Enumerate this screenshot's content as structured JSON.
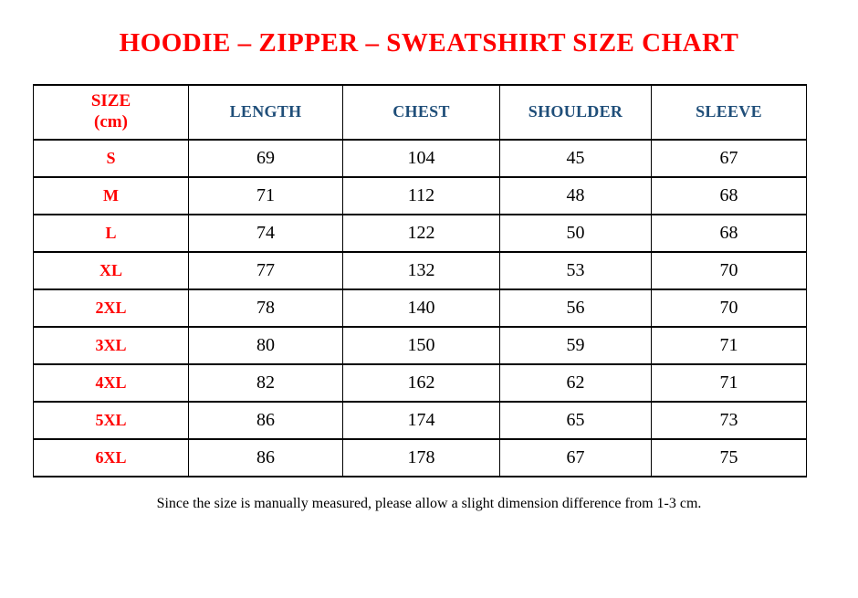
{
  "stray_mark": ".",
  "title": "HOODIE – ZIPPER – SWEATSHIRT SIZE CHART",
  "table": {
    "header": {
      "size_label_line1": "SIZE",
      "size_label_line2": "(cm)",
      "measurement_columns": [
        "LENGTH",
        "CHEST",
        "SHOULDER",
        "SLEEVE"
      ]
    },
    "rows": [
      {
        "size": "S",
        "values": [
          "69",
          "104",
          "45",
          "67"
        ]
      },
      {
        "size": "M",
        "values": [
          "71",
          "112",
          "48",
          "68"
        ]
      },
      {
        "size": "L",
        "values": [
          "74",
          "122",
          "50",
          "68"
        ]
      },
      {
        "size": "XL",
        "values": [
          "77",
          "132",
          "53",
          "70"
        ]
      },
      {
        "size": "2XL",
        "values": [
          "78",
          "140",
          "56",
          "70"
        ]
      },
      {
        "size": "3XL",
        "values": [
          "80",
          "150",
          "59",
          "71"
        ]
      },
      {
        "size": "4XL",
        "values": [
          "82",
          "162",
          "62",
          "71"
        ]
      },
      {
        "size": "5XL",
        "values": [
          "86",
          "174",
          "65",
          "73"
        ]
      },
      {
        "size": "6XL",
        "values": [
          "86",
          "178",
          "67",
          "75"
        ]
      }
    ]
  },
  "footer_note": "Since the size is manually measured, please allow a slight dimension difference from 1-3 cm.",
  "colors": {
    "title_red": "#ff0000",
    "label_red": "#ff0000",
    "header_blue": "#1f4e79",
    "text_black": "#000000",
    "border_black": "#000000",
    "page_bg": "#ffffff"
  }
}
